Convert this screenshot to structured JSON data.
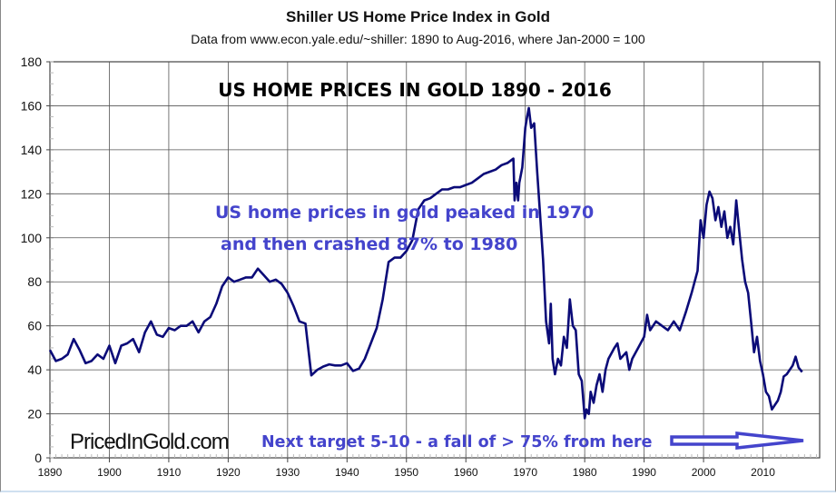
{
  "chart_data": {
    "type": "line",
    "title": "Shiller US Home Price Index in Gold",
    "subtitle": "Data from www.econ.yale.edu/~shiller: 1890 to Aug-2016, where Jan-2000 = 100",
    "xlabel": "",
    "ylabel": "",
    "xlim": [
      1890,
      2020
    ],
    "ylim": [
      0,
      180
    ],
    "x_ticks": [
      "1890",
      "1900",
      "1910",
      "1920",
      "1930",
      "1940",
      "1950",
      "1960",
      "1970",
      "1980",
      "1990",
      "2000",
      "2010"
    ],
    "y_ticks": [
      "0",
      "20",
      "40",
      "60",
      "80",
      "100",
      "120",
      "140",
      "160",
      "180"
    ],
    "grid": true,
    "legend": "none",
    "line_color": "#0b0b78",
    "annotation_color": "#4444cc",
    "annotations": {
      "headline": "US HOME PRICES IN GOLD  1890 - 2016",
      "peak_line1": "US home prices in gold peaked in 1970",
      "peak_line2": "and then crashed 87% to 1980",
      "target": "Next target 5-10 - a fall of > 75% from here",
      "watermark": "PricedInGold.com"
    },
    "series": [
      {
        "x": [
          1890,
          1891,
          1892,
          1893,
          1894,
          1895,
          1896,
          1897,
          1898,
          1899,
          1900,
          1901,
          1902,
          1903,
          1904,
          1905,
          1906,
          1907,
          1908,
          1909,
          1910,
          1911,
          1912,
          1913,
          1914,
          1915,
          1916,
          1917,
          1918,
          1919,
          1920,
          1921,
          1922,
          1923,
          1924,
          1925,
          1926,
          1927,
          1928,
          1929,
          1930,
          1931,
          1932,
          1933,
          1934,
          1935,
          1936,
          1937,
          1938,
          1939,
          1940,
          1941,
          1942,
          1943,
          1944,
          1945,
          1946,
          1947,
          1948,
          1949,
          1950,
          1951,
          1952,
          1953,
          1954,
          1955,
          1956,
          1957,
          1958,
          1959,
          1960,
          1961,
          1962,
          1963,
          1964,
          1965,
          1966,
          1967,
          1968,
          1968.2,
          1968.5,
          1968.8,
          1969,
          1969.5,
          1970,
          1970.3,
          1970.6,
          1971,
          1971.5,
          1972,
          1972.5,
          1973,
          1973.5,
          1974,
          1974.3,
          1974.6,
          1975,
          1975.5,
          1976,
          1976.5,
          1977,
          1977.5,
          1978,
          1978.5,
          1979,
          1979.5,
          1980,
          1980.3,
          1980.7,
          1981,
          1981.5,
          1982,
          1982.5,
          1983,
          1983.5,
          1984,
          1985,
          1985.5,
          1986,
          1987,
          1987.5,
          1988,
          1989,
          1990,
          1990.5,
          1991,
          1992,
          1993,
          1994,
          1995,
          1996,
          1997,
          1998,
          1999,
          1999.5,
          2000,
          2000.5,
          2001,
          2001.5,
          2002,
          2002.5,
          2003,
          2003.5,
          2004,
          2004.5,
          2005,
          2005.5,
          2006,
          2006.5,
          2007,
          2007.5,
          2008,
          2008.5,
          2009,
          2009.5,
          2010,
          2010.5,
          2011,
          2011.5,
          2012,
          2012.5,
          2013,
          2013.5,
          2014,
          2015,
          2015.5,
          2016,
          2016.6
        ],
        "y": [
          49,
          44,
          45,
          47,
          54,
          49,
          43,
          44,
          47,
          45,
          51,
          43,
          51,
          52,
          54,
          48,
          57,
          62,
          56,
          55,
          59,
          58,
          60,
          60,
          62,
          57,
          62,
          64,
          70,
          78,
          82,
          80,
          81,
          82,
          82,
          86,
          83,
          80,
          81,
          79,
          75,
          69,
          62,
          61,
          37.5,
          40,
          41.5,
          42.5,
          42,
          42,
          43,
          39.5,
          40.5,
          45,
          52,
          59,
          72,
          89,
          91,
          91,
          94,
          99,
          113,
          117,
          118,
          120,
          122,
          122,
          123,
          123,
          124,
          125,
          127,
          129,
          130,
          131,
          133,
          134,
          136,
          117,
          125,
          117,
          125,
          132,
          150,
          155,
          159,
          150,
          152,
          130,
          110,
          90,
          62,
          52,
          70,
          45,
          38,
          45,
          42,
          55,
          50,
          72,
          60,
          58,
          38,
          35,
          18,
          22,
          20,
          30,
          25,
          33,
          38,
          30,
          40,
          45,
          50,
          52,
          45,
          48,
          40,
          45,
          50,
          55,
          65,
          58,
          62,
          60,
          58,
          62,
          58,
          66,
          75,
          85,
          108,
          100,
          115,
          121,
          118,
          108,
          114,
          105,
          112,
          100,
          105,
          97,
          117,
          103,
          90,
          80,
          75,
          62,
          48,
          55,
          44,
          38,
          30,
          28,
          22,
          24,
          26,
          30,
          37,
          38,
          42,
          46,
          41,
          39
        ]
      }
    ]
  }
}
